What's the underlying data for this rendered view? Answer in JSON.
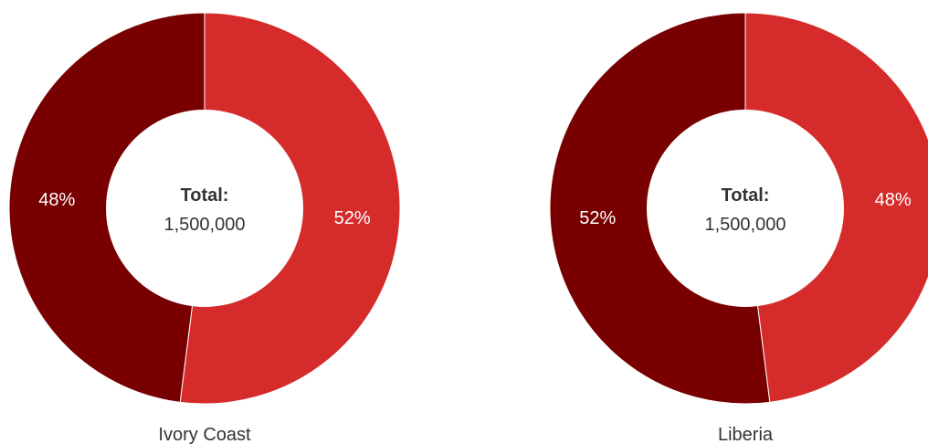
{
  "chart_data": [
    {
      "type": "pie",
      "subtype": "donut",
      "title": "Ivory Coast",
      "center_title": "Total:",
      "center_value": "1,500,000",
      "slices": [
        {
          "label": "52%",
          "value": 52,
          "color": "#d52b2b"
        },
        {
          "label": "48%",
          "value": 48,
          "color": "#780000"
        }
      ]
    },
    {
      "type": "pie",
      "subtype": "donut",
      "title": "Liberia",
      "center_title": "Total:",
      "center_value": "1,500,000",
      "slices": [
        {
          "label": "48%",
          "value": 48,
          "color": "#d52b2b"
        },
        {
          "label": "52%",
          "value": 52,
          "color": "#780000"
        }
      ]
    }
  ]
}
